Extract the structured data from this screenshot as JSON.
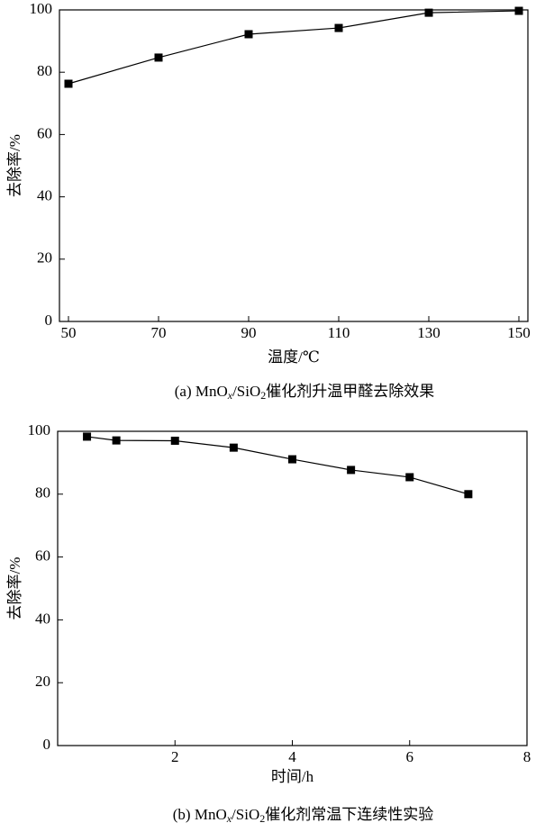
{
  "chart_data": [
    {
      "type": "line",
      "caption": [
        "(a) MnO",
        "x",
        "/SiO",
        "2",
        "催化剂升温甲醛去除效果"
      ],
      "x_label": "温度/℃",
      "y_label": "去除率/%",
      "x": [
        50,
        70,
        90,
        110,
        130,
        150
      ],
      "series": [
        {
          "color": "#000000",
          "values": [
            76.3,
            84.7,
            92.2,
            94.2,
            99.1,
            99.7
          ]
        }
      ],
      "xlim": [
        48,
        152
      ],
      "xticks": [
        50,
        70,
        90,
        110,
        130,
        150
      ],
      "ylim": [
        0,
        100
      ],
      "yticks": [
        0,
        20,
        40,
        60,
        80,
        100
      ]
    },
    {
      "type": "line",
      "caption": [
        "(b) MnO",
        "x",
        "/SiO",
        "2",
        "催化剂常温下连续性实验"
      ],
      "x_label": "时间/h",
      "y_label": "去除率/%",
      "x": [
        0.5,
        1,
        2,
        3,
        4,
        5,
        6,
        7
      ],
      "series": [
        {
          "color": "#000000",
          "values": [
            98.3,
            97.1,
            97,
            94.8,
            91.1,
            87.7,
            85.4,
            80
          ]
        }
      ],
      "xlim": [
        0,
        8
      ],
      "xticks": [
        2,
        4,
        6,
        8
      ],
      "ylim": [
        0,
        100
      ],
      "yticks": [
        0,
        20,
        40,
        60,
        80,
        100
      ]
    }
  ]
}
